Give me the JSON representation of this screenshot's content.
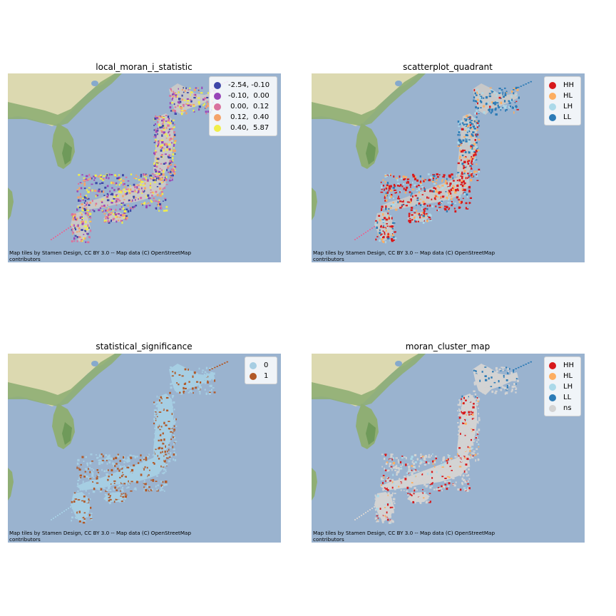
{
  "panels": [
    {
      "title": "local_moran_i_statistic",
      "legend": [
        {
          "label": "-2.54, -0.10",
          "color": "#3e47a8"
        },
        {
          "label": "-0.10,  0.00",
          "color": "#9945b8"
        },
        {
          "label": " 0.00,  0.12",
          "color": "#d9739e"
        },
        {
          "label": " 0.12,  0.40",
          "color": "#f4a36a"
        },
        {
          "label": " 0.40,  5.87",
          "color": "#f0ee4a"
        }
      ],
      "attribution": [
        "Map tiles by Stamen Design, CC BY 3.0 -- Map data (C) OpenStreetMap",
        "contributors"
      ]
    },
    {
      "title": "scatterplot_quadrant",
      "legend": [
        {
          "label": "HH",
          "color": "#d7191c"
        },
        {
          "label": "HL",
          "color": "#fdae61"
        },
        {
          "label": "LH",
          "color": "#abd9e9"
        },
        {
          "label": "LL",
          "color": "#2c7bb6"
        }
      ],
      "attribution": [
        "Map tiles by Stamen Design, CC BY 3.0 -- Map data (C) OpenStreetMap",
        "contributors"
      ]
    },
    {
      "title": "statistical_significance",
      "legend": [
        {
          "label": "0",
          "color": "#a6cee3"
        },
        {
          "label": "1",
          "color": "#b15928"
        }
      ],
      "attribution": [
        "Map tiles by Stamen Design, CC BY 3.0 -- Map data (C) OpenStreetMap",
        "contributors"
      ]
    },
    {
      "title": "moran_cluster_map",
      "legend": [
        {
          "label": "HH",
          "color": "#d7191c"
        },
        {
          "label": "HL",
          "color": "#fdae61"
        },
        {
          "label": "LH",
          "color": "#abd9e9"
        },
        {
          "label": "LL",
          "color": "#2c7bb6"
        },
        {
          "label": "ns",
          "color": "#d3d3d3"
        }
      ],
      "attribution": [
        "Map tiles by Stamen Design, CC BY 3.0 -- Map data (C) OpenStreetMap",
        "contributors"
      ]
    }
  ],
  "colors": {
    "sea": "#9ab3cf",
    "land_green": "#8fae74",
    "land_tan": "#dcd9b0"
  }
}
